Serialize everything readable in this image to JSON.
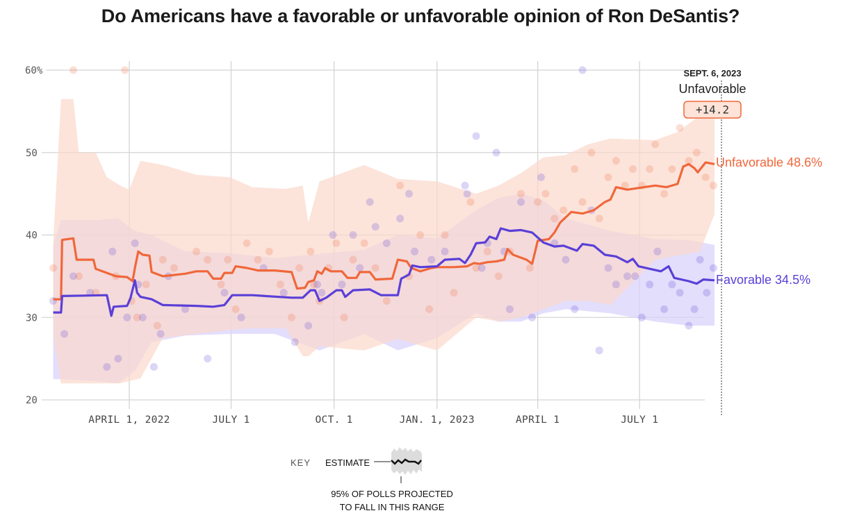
{
  "title": "Do Americans have a favorable or unfavorable opinion of Ron DeSantis?",
  "annotation": {
    "date": "SEPT. 6, 2023",
    "series": "Unfavorable",
    "value": "+14.2"
  },
  "key": {
    "label": "KEY",
    "estimate": "ESTIMATE",
    "range_line1": "95% OF POLLS PROJECTED",
    "range_line2": "TO FALL IN THIS RANGE"
  },
  "colors": {
    "unfavorable": "#f0673a",
    "favorable": "#5a3fd8",
    "unfavorable_band": "#fbd9cc",
    "favorable_band": "#d9d3fb",
    "grid": "#d4d4d4"
  },
  "chart_data": {
    "type": "line",
    "title": "Do Americans have a favorable or unfavorable opinion of Ron DeSantis?",
    "xlabel": "",
    "ylabel": "",
    "x_unit": "days since Jan. 1, 2022",
    "xlim": [
      0,
      635
    ],
    "ylim": [
      20,
      60
    ],
    "yticks": [
      {
        "value": 60,
        "label": "60%"
      },
      {
        "value": 50,
        "label": "50"
      },
      {
        "value": 40,
        "label": "40"
      },
      {
        "value": 30,
        "label": "30"
      },
      {
        "value": 20,
        "label": "20"
      }
    ],
    "xticks": [
      {
        "value": 90,
        "label": "APRIL 1, 2022"
      },
      {
        "value": 181,
        "label": "JULY 1"
      },
      {
        "value": 273,
        "label": "OCT. 1"
      },
      {
        "value": 365,
        "label": "JAN. 1, 2023"
      },
      {
        "value": 455,
        "label": "APRIL 1"
      },
      {
        "value": 546,
        "label": "JULY 1"
      }
    ],
    "grid": true,
    "end_marker": {
      "x": 613,
      "label": "SEPT. 6, 2023"
    },
    "series": [
      {
        "name": "Unfavorable",
        "end_label": "Unfavorable 48.6%",
        "final_value": 48.6,
        "x": [
          22,
          29,
          30,
          40,
          43,
          58,
          60,
          78,
          88,
          93,
          95,
          98,
          102,
          108,
          110,
          120,
          140,
          150,
          160,
          165,
          172,
          175,
          182,
          185,
          195,
          205,
          220,
          235,
          240,
          247,
          250,
          255,
          258,
          262,
          265,
          270,
          280,
          285,
          293,
          296,
          305,
          310,
          325,
          330,
          338,
          342,
          350,
          360,
          365,
          380,
          392,
          398,
          403,
          410,
          418,
          425,
          428,
          433,
          445,
          450,
          455,
          465,
          470,
          475,
          485,
          495,
          505,
          515,
          520,
          525,
          535,
          545,
          560,
          570,
          580,
          585,
          590,
          595,
          598,
          605,
          613
        ],
        "values": [
          32.2,
          32.2,
          39.4,
          39.6,
          37,
          37,
          35.9,
          35,
          34.9,
          34.4,
          36,
          38,
          37.6,
          37.5,
          35.5,
          35,
          35.3,
          35.6,
          35.6,
          34.7,
          34.7,
          35.4,
          35.4,
          36.2,
          36,
          35.7,
          35.7,
          35.5,
          33.5,
          33.6,
          34.3,
          34.5,
          35.6,
          35.3,
          36,
          35.6,
          35.6,
          34.8,
          34.8,
          35.5,
          35.5,
          34.6,
          34.7,
          37,
          36.8,
          36,
          35.6,
          36,
          36.1,
          36.1,
          36.2,
          36.6,
          36.5,
          36.7,
          36.8,
          37,
          38.3,
          37.6,
          37,
          36.5,
          39.3,
          39.5,
          40.3,
          41.5,
          42.8,
          42.6,
          43,
          44,
          44.3,
          45.8,
          45.5,
          45.7,
          46,
          45.8,
          46.2,
          48.3,
          48.6,
          48.1,
          47.6,
          48.8,
          48.6
        ],
        "band": {
          "x": [
            22,
            29,
            40,
            45,
            60,
            70,
            82,
            90,
            100,
            120,
            150,
            180,
            200,
            230,
            245,
            250,
            260,
            300,
            330,
            365,
            400,
            420,
            440,
            460,
            480,
            500,
            520,
            560,
            580,
            600,
            613
          ],
          "upper": [
            39,
            56.5,
            56.5,
            50,
            50,
            47,
            46,
            45.5,
            49,
            48.5,
            47.3,
            47,
            45.8,
            45.6,
            46,
            41.5,
            46.5,
            48.5,
            46.8,
            46.5,
            45,
            46,
            47.5,
            49.4,
            49.7,
            51,
            51.7,
            51.5,
            52.5,
            54.5,
            55
          ],
          "lower": [
            27.8,
            22,
            22,
            22,
            22,
            22,
            22,
            22.3,
            22.6,
            27.5,
            28,
            28.5,
            28.7,
            28.7,
            25.3,
            25.3,
            26.5,
            26,
            27.4,
            26,
            30,
            29.5,
            30,
            31,
            32,
            32,
            31.5,
            37,
            37.5,
            38,
            42.5
          ]
        },
        "polls": [
          [
            22,
            36
          ],
          [
            40,
            60
          ],
          [
            45,
            35
          ],
          [
            60,
            33
          ],
          [
            78,
            35
          ],
          [
            86,
            60
          ],
          [
            92,
            32
          ],
          [
            97,
            30
          ],
          [
            105,
            34
          ],
          [
            115,
            29
          ],
          [
            120,
            37
          ],
          [
            130,
            36
          ],
          [
            150,
            38
          ],
          [
            160,
            37
          ],
          [
            172,
            34
          ],
          [
            178,
            37
          ],
          [
            185,
            31
          ],
          [
            195,
            39
          ],
          [
            205,
            37
          ],
          [
            215,
            38
          ],
          [
            225,
            34
          ],
          [
            235,
            30
          ],
          [
            242,
            36
          ],
          [
            252,
            38
          ],
          [
            255,
            34
          ],
          [
            260,
            32
          ],
          [
            268,
            36
          ],
          [
            275,
            39
          ],
          [
            282,
            30
          ],
          [
            290,
            37
          ],
          [
            300,
            39
          ],
          [
            310,
            36
          ],
          [
            320,
            32
          ],
          [
            332,
            46
          ],
          [
            340,
            35
          ],
          [
            350,
            40
          ],
          [
            358,
            31
          ],
          [
            372,
            40
          ],
          [
            380,
            33
          ],
          [
            395,
            44
          ],
          [
            400,
            36
          ],
          [
            410,
            38
          ],
          [
            420,
            35
          ],
          [
            430,
            38
          ],
          [
            440,
            45
          ],
          [
            448,
            36
          ],
          [
            455,
            44
          ],
          [
            462,
            45
          ],
          [
            470,
            42
          ],
          [
            478,
            43
          ],
          [
            488,
            48
          ],
          [
            495,
            44
          ],
          [
            503,
            50
          ],
          [
            510,
            42
          ],
          [
            518,
            47
          ],
          [
            525,
            49
          ],
          [
            533,
            46
          ],
          [
            540,
            48
          ],
          [
            548,
            46
          ],
          [
            555,
            48
          ],
          [
            560,
            51
          ],
          [
            568,
            45
          ],
          [
            575,
            48
          ],
          [
            582,
            53
          ],
          [
            590,
            49
          ],
          [
            597,
            50
          ],
          [
            605,
            47
          ],
          [
            612,
            46
          ]
        ]
      },
      {
        "name": "Favorable",
        "end_label": "Favorable 34.5%",
        "final_value": 34.5,
        "x": [
          22,
          29,
          30,
          70,
          74,
          76,
          88,
          91,
          95,
          97,
          100,
          110,
          120,
          150,
          165,
          175,
          182,
          200,
          235,
          245,
          252,
          256,
          260,
          266,
          275,
          280,
          283,
          290,
          305,
          315,
          330,
          333,
          340,
          343,
          350,
          365,
          372,
          385,
          390,
          395,
          400,
          408,
          412,
          418,
          422,
          430,
          440,
          450,
          460,
          470,
          478,
          490,
          495,
          505,
          515,
          525,
          535,
          540,
          545,
          555,
          565,
          572,
          577,
          590,
          597,
          603,
          613
        ],
        "values": [
          30.6,
          30.6,
          32.6,
          32.7,
          30.2,
          31.3,
          31.4,
          32.3,
          34.5,
          33,
          32.5,
          32.2,
          31.5,
          31.4,
          31.3,
          31.5,
          32.7,
          32.7,
          32.4,
          32.4,
          33.3,
          33.3,
          32,
          32.4,
          33.3,
          33.3,
          32.5,
          33.3,
          33.4,
          32.7,
          32.7,
          34.7,
          35.2,
          36.3,
          36.1,
          36.2,
          37,
          37.1,
          36.6,
          37.6,
          39,
          39.1,
          39.8,
          39.5,
          40.8,
          40.5,
          40.6,
          40.3,
          39.1,
          38.6,
          38.7,
          38.1,
          38.9,
          38.7,
          37.6,
          37.4,
          36.7,
          37.1,
          36.2,
          35.9,
          35.6,
          36.2,
          34.8,
          34.4,
          34.1,
          34.6,
          34.5
        ],
        "band": {
          "x": [
            22,
            29,
            60,
            80,
            95,
            110,
            140,
            180,
            220,
            260,
            300,
            330,
            365,
            400,
            420,
            440,
            460,
            480,
            520,
            560,
            590,
            613
          ],
          "upper": [
            38.8,
            41.8,
            41.8,
            42,
            40.5,
            40,
            38,
            37.8,
            37.2,
            37.7,
            38.2,
            40,
            39.6,
            43,
            44.5,
            45,
            44.2,
            42,
            40.5,
            39.5,
            39.4,
            38.8
          ],
          "lower": [
            22.5,
            22.5,
            22.3,
            22,
            23.5,
            27,
            27.8,
            28,
            28,
            26,
            28,
            26,
            27.5,
            30.5,
            29.5,
            29.5,
            30.5,
            31,
            30.5,
            29.5,
            29,
            29
          ]
        },
        "polls": [
          [
            22,
            32
          ],
          [
            32,
            28
          ],
          [
            40,
            35
          ],
          [
            55,
            33
          ],
          [
            70,
            24
          ],
          [
            75,
            38
          ],
          [
            80,
            25
          ],
          [
            88,
            30
          ],
          [
            95,
            39
          ],
          [
            98,
            34
          ],
          [
            102,
            30
          ],
          [
            112,
            24
          ],
          [
            118,
            28
          ],
          [
            125,
            35
          ],
          [
            140,
            31
          ],
          [
            160,
            25
          ],
          [
            175,
            33
          ],
          [
            190,
            30
          ],
          [
            210,
            36
          ],
          [
            228,
            33
          ],
          [
            238,
            27
          ],
          [
            250,
            29
          ],
          [
            258,
            34
          ],
          [
            262,
            33
          ],
          [
            272,
            40
          ],
          [
            280,
            34
          ],
          [
            290,
            40
          ],
          [
            296,
            36
          ],
          [
            305,
            44
          ],
          [
            310,
            41
          ],
          [
            320,
            39
          ],
          [
            332,
            42
          ],
          [
            340,
            45
          ],
          [
            345,
            38
          ],
          [
            360,
            37
          ],
          [
            372,
            38
          ],
          [
            390,
            46
          ],
          [
            392,
            45
          ],
          [
            400,
            52
          ],
          [
            405,
            36
          ],
          [
            410,
            39
          ],
          [
            418,
            50
          ],
          [
            425,
            38
          ],
          [
            430,
            31
          ],
          [
            440,
            44
          ],
          [
            450,
            30
          ],
          [
            458,
            47
          ],
          [
            470,
            39
          ],
          [
            480,
            37
          ],
          [
            488,
            31
          ],
          [
            495,
            60
          ],
          [
            503,
            43
          ],
          [
            510,
            26
          ],
          [
            518,
            36
          ],
          [
            525,
            34
          ],
          [
            535,
            35
          ],
          [
            542,
            35
          ],
          [
            548,
            30
          ],
          [
            555,
            34
          ],
          [
            562,
            38
          ],
          [
            568,
            31
          ],
          [
            575,
            34
          ],
          [
            582,
            33
          ],
          [
            590,
            29
          ],
          [
            595,
            31
          ],
          [
            600,
            37
          ],
          [
            606,
            33
          ],
          [
            612,
            36
          ]
        ]
      }
    ]
  }
}
